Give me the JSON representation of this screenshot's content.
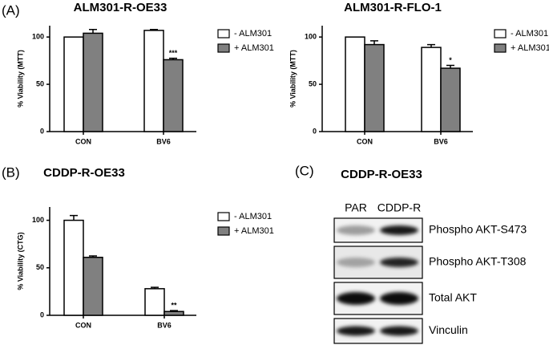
{
  "panel_labels": [
    "(A)",
    "(B)",
    "(C)"
  ],
  "chart_data": [
    {
      "type": "bar",
      "title": "ALM301-R-OE33",
      "y_label": "% Viability (MTT)",
      "categories": [
        "CON",
        "BV6"
      ],
      "series": [
        {
          "name": "- ALM301",
          "color": "#ffffff",
          "values": [
            100,
            107
          ],
          "errors": [
            0,
            1
          ]
        },
        {
          "name": "+ ALM301",
          "color": "#808080",
          "values": [
            104,
            76
          ],
          "errors": [
            4,
            1.5
          ],
          "value_annotations": [
            null,
            "***"
          ]
        }
      ],
      "ylim": [
        0,
        112
      ],
      "yticks": [
        0,
        50,
        100
      ]
    },
    {
      "type": "bar",
      "title": "ALM301-R-FLO-1",
      "y_label": "% Viability (MTT)",
      "categories": [
        "CON",
        "BV6"
      ],
      "series": [
        {
          "name": "- ALM301",
          "color": "#ffffff",
          "values": [
            100,
            89
          ],
          "errors": [
            0,
            3
          ]
        },
        {
          "name": "+ ALM301",
          "color": "#808080",
          "values": [
            92,
            67
          ],
          "errors": [
            4,
            3
          ],
          "value_annotations": [
            null,
            "*"
          ]
        }
      ],
      "ylim": [
        0,
        112
      ],
      "yticks": [
        0,
        50,
        100
      ]
    },
    {
      "type": "bar",
      "title": "CDDP-R-OE33",
      "y_label": "% Viability (CTG)",
      "categories": [
        "CON",
        "BV6"
      ],
      "series": [
        {
          "name": "- ALM301",
          "color": "#ffffff",
          "values": [
            100,
            28
          ],
          "errors": [
            5,
            1.5
          ]
        },
        {
          "name": "+ ALM301",
          "color": "#808080",
          "values": [
            61,
            4
          ],
          "errors": [
            1.5,
            1
          ],
          "value_annotations": [
            null,
            "**"
          ]
        }
      ],
      "ylim": [
        0,
        114
      ],
      "yticks": [
        0,
        50,
        100
      ]
    }
  ],
  "blot": {
    "title": "CDDP-R-OE33",
    "lanes": [
      "PAR",
      "CDDP-R"
    ],
    "rows": [
      "Phospho AKT-S473",
      "Phospho AKT-T308",
      "Total AKT",
      "Vinculin"
    ]
  }
}
